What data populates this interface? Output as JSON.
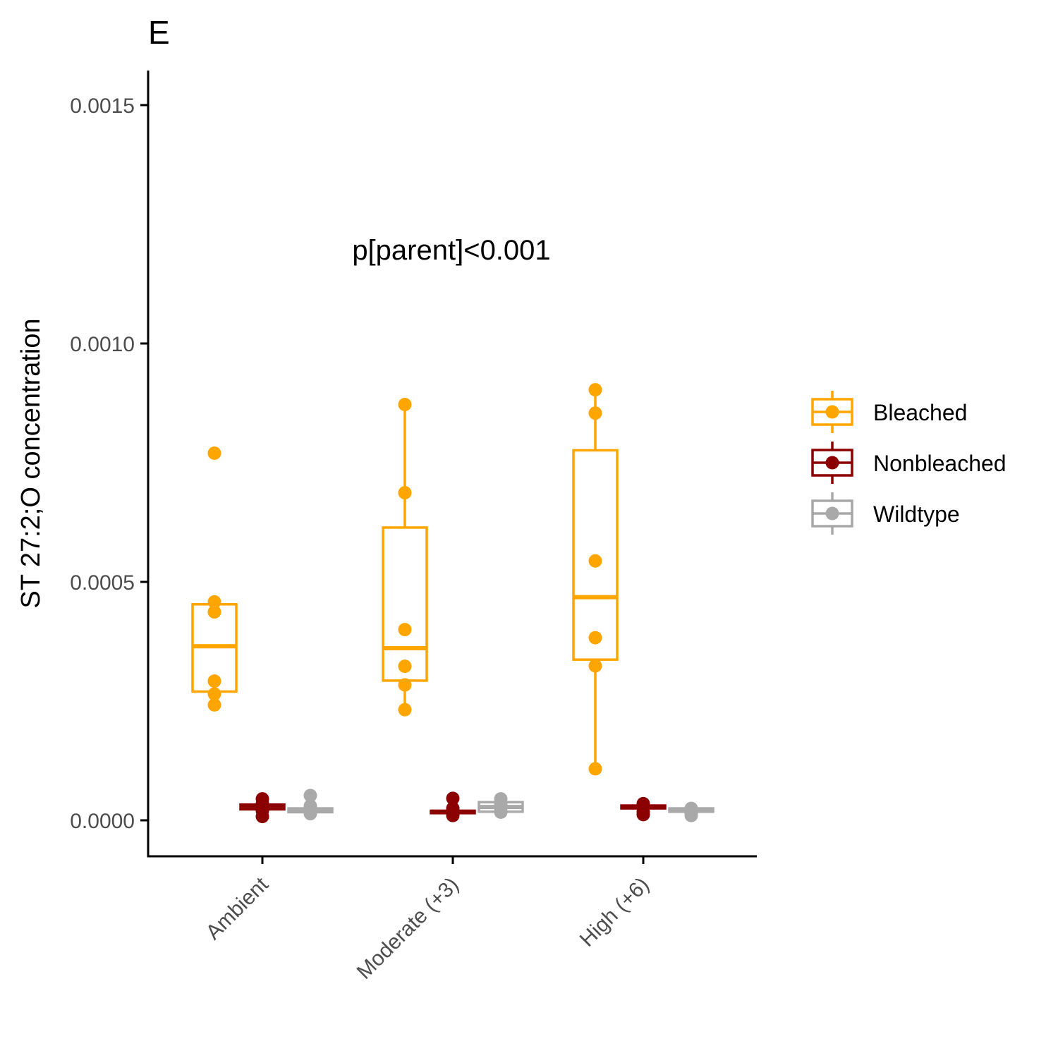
{
  "chart_data": {
    "type": "box",
    "title": "E",
    "xlabel": "",
    "ylabel": "ST 27:2;O concentration",
    "categories": [
      "Ambient",
      "Moderate (+3)",
      "High (+6)"
    ],
    "ylim": [
      -7.5e-05,
      0.00158
    ],
    "yticks": [
      0.0,
      0.0005,
      0.001,
      0.0015
    ],
    "ytick_labels": [
      "0.0000",
      "0.0005",
      "0.0010",
      "0.0015"
    ],
    "annotation": "p[parent]<0.001",
    "grid": false,
    "legend_position": "right",
    "series": [
      {
        "name": "Bleached",
        "color": "#FFA500",
        "boxes": [
          {
            "category": "Ambient",
            "whisker_low": 0.000242,
            "q1": 0.00027,
            "median": 0.000365,
            "q3": 0.000453,
            "whisker_high": 0.000453,
            "points": [
              0.00077,
              0.000458,
              0.000437,
              0.000292,
              0.000265,
              0.000242
            ]
          },
          {
            "category": "Moderate (+3)",
            "whisker_low": 0.000232,
            "q1": 0.000293,
            "median": 0.000361,
            "q3": 0.000614,
            "whisker_high": 0.000872,
            "points": [
              0.000872,
              0.000687,
              0.0004,
              0.000323,
              0.000284,
              0.000232
            ]
          },
          {
            "category": "High (+6)",
            "whisker_low": 0.000108,
            "q1": 0.000337,
            "median": 0.000468,
            "q3": 0.000776,
            "whisker_high": 0.000903,
            "points": [
              0.000903,
              0.000854,
              0.000544,
              0.000383,
              0.000324,
              0.000108
            ]
          }
        ]
      },
      {
        "name": "Nonbleached",
        "color": "#8B0000",
        "boxes": [
          {
            "category": "Ambient",
            "whisker_low": 2.2e-05,
            "q1": 2.3e-05,
            "median": 3e-05,
            "q3": 3.3e-05,
            "whisker_high": 3.6e-05,
            "points": [
              4.5e-05,
              3.5e-05,
              2e-05,
              8e-06
            ]
          },
          {
            "category": "Moderate (+3)",
            "whisker_low": 1.2e-05,
            "q1": 1.5e-05,
            "median": 1.8e-05,
            "q3": 2e-05,
            "whisker_high": 2.2e-05,
            "points": [
              4.6e-05,
              2.5e-05,
              1.5e-05,
              1e-05
            ]
          },
          {
            "category": "High (+6)",
            "whisker_low": 2.2e-05,
            "q1": 2.5e-05,
            "median": 2.8e-05,
            "q3": 3.1e-05,
            "whisker_high": 3.4e-05,
            "points": [
              3.5e-05,
              2.8e-05,
              1.8e-05,
              1.2e-05
            ]
          }
        ]
      },
      {
        "name": "Wildtype",
        "color": "#A9A9A9",
        "boxes": [
          {
            "category": "Ambient",
            "whisker_low": 1.6e-05,
            "q1": 1.7e-05,
            "median": 2.2e-05,
            "q3": 2.5e-05,
            "whisker_high": 2.8e-05,
            "points": [
              5.2e-05,
              3e-05,
              1.8e-05,
              1.4e-05
            ]
          },
          {
            "category": "Moderate (+3)",
            "whisker_low": 1.6e-05,
            "q1": 1.8e-05,
            "median": 2.8e-05,
            "q3": 3.8e-05,
            "whisker_high": 4e-05,
            "points": [
              4.5e-05,
              3.5e-05,
              2.5e-05,
              1.7e-05
            ]
          },
          {
            "category": "High (+6)",
            "whisker_low": 1.6e-05,
            "q1": 1.8e-05,
            "median": 2.2e-05,
            "q3": 2.5e-05,
            "whisker_high": 2.7e-05,
            "points": [
              2.5e-05,
              2e-05,
              1.5e-05,
              1e-05
            ]
          }
        ]
      }
    ]
  }
}
